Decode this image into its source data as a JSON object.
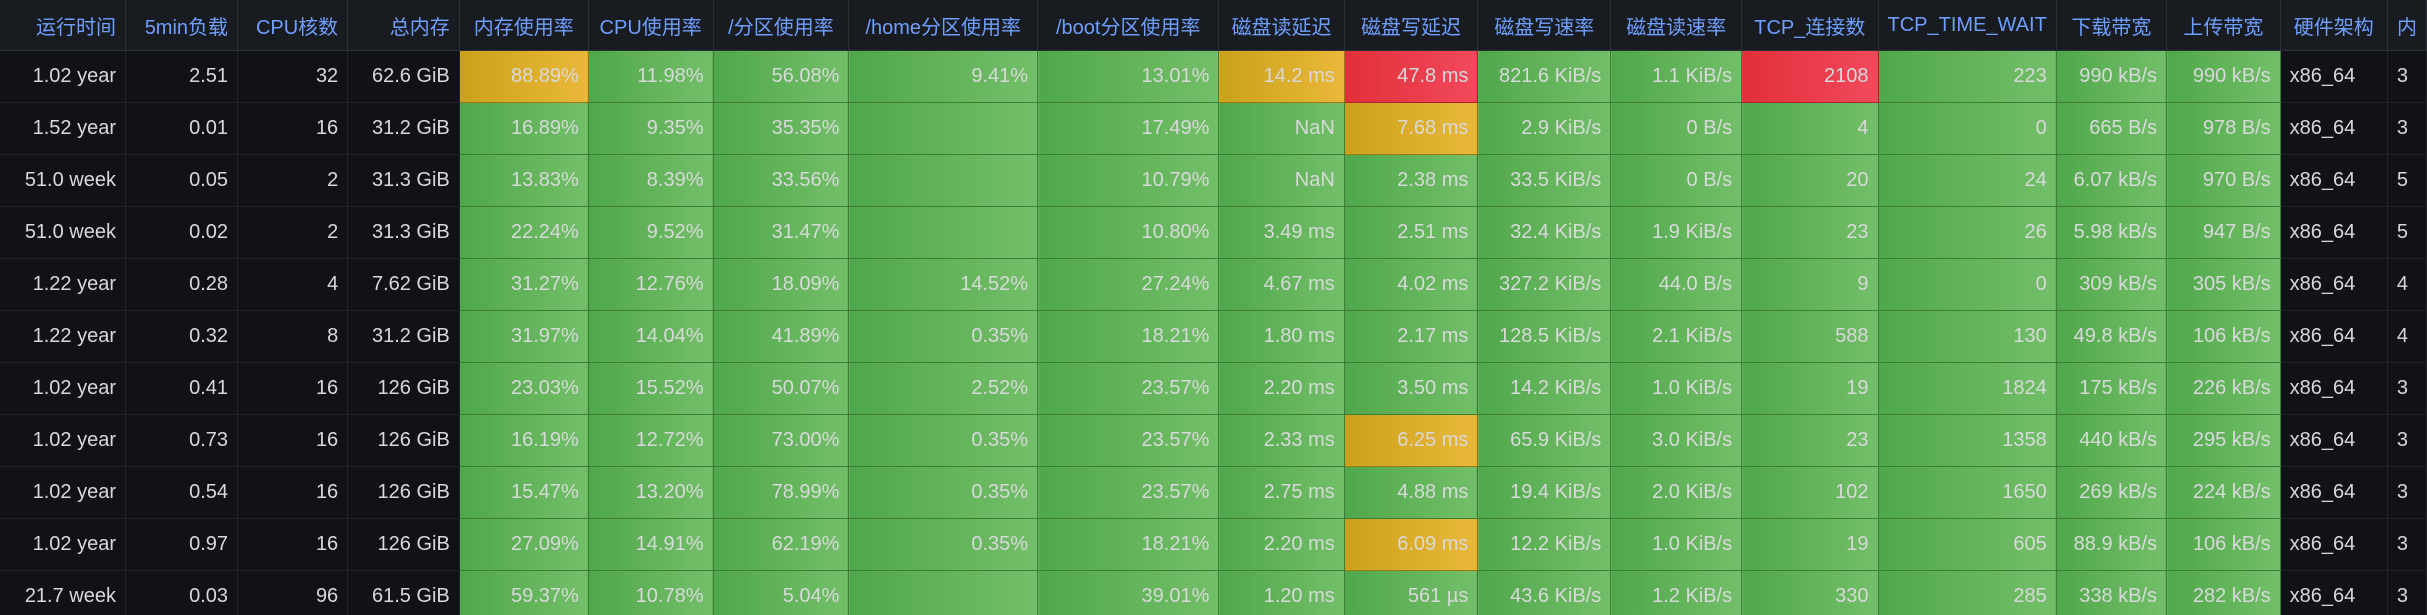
{
  "colors": {
    "ok": "#73bf69",
    "warn": "#eab839",
    "crit": "#f2495c",
    "header_text": "#6e9fff",
    "background": "#111217"
  },
  "columns": [
    {
      "key": "uptime",
      "label": "运行时间",
      "align": "right"
    },
    {
      "key": "load5",
      "label": "5min负载",
      "align": "right"
    },
    {
      "key": "cpu_cores",
      "label": "CPU核数",
      "align": "right"
    },
    {
      "key": "mem_total",
      "label": "总内存",
      "align": "right"
    },
    {
      "key": "mem_usage",
      "label": "内存使用率",
      "align": "right"
    },
    {
      "key": "cpu_usage",
      "label": "CPU使用率",
      "align": "right"
    },
    {
      "key": "root_usage",
      "label": "/分区使用率",
      "align": "right"
    },
    {
      "key": "home_usage",
      "label": "/home分区使用率",
      "align": "right"
    },
    {
      "key": "boot_usage",
      "label": "/boot分区使用率",
      "align": "right"
    },
    {
      "key": "disk_read_latency",
      "label": "磁盘读延迟",
      "align": "right"
    },
    {
      "key": "disk_write_latency",
      "label": "磁盘写延迟",
      "align": "right"
    },
    {
      "key": "disk_write_rate",
      "label": "磁盘写速率",
      "align": "right"
    },
    {
      "key": "disk_read_rate",
      "label": "磁盘读速率",
      "align": "right"
    },
    {
      "key": "tcp_conn",
      "label": "TCP_连接数",
      "align": "right"
    },
    {
      "key": "tcp_time_wait",
      "label": "TCP_TIME_WAIT",
      "align": "right"
    },
    {
      "key": "net_down",
      "label": "下载带宽",
      "align": "right"
    },
    {
      "key": "net_up",
      "label": "上传带宽",
      "align": "right"
    },
    {
      "key": "arch",
      "label": "硬件架构",
      "align": "left"
    },
    {
      "key": "extra",
      "label": "内",
      "align": "left"
    }
  ],
  "rows": [
    {
      "cells": [
        "1.02 year",
        "2.51",
        "32",
        "62.6 GiB",
        "88.89%",
        "11.98%",
        "56.08%",
        "9.41%",
        "13.01%",
        "14.2 ms",
        "47.8 ms",
        "821.6 KiB/s",
        "1.1 KiB/s",
        "2108",
        "223",
        "990 kB/s",
        "990 kB/s",
        "x86_64",
        "3"
      ],
      "status": [
        "plain",
        "plain",
        "plain",
        "plain",
        "warn",
        "ok",
        "ok",
        "ok",
        "ok",
        "warn",
        "crit",
        "ok",
        "ok",
        "crit",
        "ok",
        "ok",
        "ok",
        "plain",
        "plain"
      ]
    },
    {
      "cells": [
        "1.52 year",
        "0.01",
        "16",
        "31.2 GiB",
        "16.89%",
        "9.35%",
        "35.35%",
        "",
        "17.49%",
        "NaN",
        "7.68 ms",
        "2.9 KiB/s",
        "0 B/s",
        "4",
        "0",
        "665 B/s",
        "978 B/s",
        "x86_64",
        "3"
      ],
      "status": [
        "plain",
        "plain",
        "plain",
        "plain",
        "ok",
        "ok",
        "ok",
        "ok",
        "ok",
        "ok",
        "warn",
        "ok",
        "ok",
        "ok",
        "ok",
        "ok",
        "ok",
        "plain",
        "plain"
      ]
    },
    {
      "cells": [
        "51.0 week",
        "0.05",
        "2",
        "31.3 GiB",
        "13.83%",
        "8.39%",
        "33.56%",
        "",
        "10.79%",
        "NaN",
        "2.38 ms",
        "33.5 KiB/s",
        "0 B/s",
        "20",
        "24",
        "6.07 kB/s",
        "970 B/s",
        "x86_64",
        "5"
      ],
      "status": [
        "plain",
        "plain",
        "plain",
        "plain",
        "ok",
        "ok",
        "ok",
        "ok",
        "ok",
        "ok",
        "ok",
        "ok",
        "ok",
        "ok",
        "ok",
        "ok",
        "ok",
        "plain",
        "plain"
      ]
    },
    {
      "cells": [
        "51.0 week",
        "0.02",
        "2",
        "31.3 GiB",
        "22.24%",
        "9.52%",
        "31.47%",
        "",
        "10.80%",
        "3.49 ms",
        "2.51 ms",
        "32.4 KiB/s",
        "1.9 KiB/s",
        "23",
        "26",
        "5.98 kB/s",
        "947 B/s",
        "x86_64",
        "5"
      ],
      "status": [
        "plain",
        "plain",
        "plain",
        "plain",
        "ok",
        "ok",
        "ok",
        "ok",
        "ok",
        "ok",
        "ok",
        "ok",
        "ok",
        "ok",
        "ok",
        "ok",
        "ok",
        "plain",
        "plain"
      ]
    },
    {
      "cells": [
        "1.22 year",
        "0.28",
        "4",
        "7.62 GiB",
        "31.27%",
        "12.76%",
        "18.09%",
        "14.52%",
        "27.24%",
        "4.67 ms",
        "4.02 ms",
        "327.2 KiB/s",
        "44.0 B/s",
        "9",
        "0",
        "309 kB/s",
        "305 kB/s",
        "x86_64",
        "4"
      ],
      "status": [
        "plain",
        "plain",
        "plain",
        "plain",
        "ok",
        "ok",
        "ok",
        "ok",
        "ok",
        "ok",
        "ok",
        "ok",
        "ok",
        "ok",
        "ok",
        "ok",
        "ok",
        "plain",
        "plain"
      ]
    },
    {
      "cells": [
        "1.22 year",
        "0.32",
        "8",
        "31.2 GiB",
        "31.97%",
        "14.04%",
        "41.89%",
        "0.35%",
        "18.21%",
        "1.80 ms",
        "2.17 ms",
        "128.5 KiB/s",
        "2.1 KiB/s",
        "588",
        "130",
        "49.8 kB/s",
        "106 kB/s",
        "x86_64",
        "4"
      ],
      "status": [
        "plain",
        "plain",
        "plain",
        "plain",
        "ok",
        "ok",
        "ok",
        "ok",
        "ok",
        "ok",
        "ok",
        "ok",
        "ok",
        "ok",
        "ok",
        "ok",
        "ok",
        "plain",
        "plain"
      ]
    },
    {
      "cells": [
        "1.02 year",
        "0.41",
        "16",
        "126 GiB",
        "23.03%",
        "15.52%",
        "50.07%",
        "2.52%",
        "23.57%",
        "2.20 ms",
        "3.50 ms",
        "14.2 KiB/s",
        "1.0 KiB/s",
        "19",
        "1824",
        "175 kB/s",
        "226 kB/s",
        "x86_64",
        "3"
      ],
      "status": [
        "plain",
        "plain",
        "plain",
        "plain",
        "ok",
        "ok",
        "ok",
        "ok",
        "ok",
        "ok",
        "ok",
        "ok",
        "ok",
        "ok",
        "ok",
        "ok",
        "ok",
        "plain",
        "plain"
      ]
    },
    {
      "cells": [
        "1.02 year",
        "0.73",
        "16",
        "126 GiB",
        "16.19%",
        "12.72%",
        "73.00%",
        "0.35%",
        "23.57%",
        "2.33 ms",
        "6.25 ms",
        "65.9 KiB/s",
        "3.0 KiB/s",
        "23",
        "1358",
        "440 kB/s",
        "295 kB/s",
        "x86_64",
        "3"
      ],
      "status": [
        "plain",
        "plain",
        "plain",
        "plain",
        "ok",
        "ok",
        "ok",
        "ok",
        "ok",
        "ok",
        "warn",
        "ok",
        "ok",
        "ok",
        "ok",
        "ok",
        "ok",
        "plain",
        "plain"
      ]
    },
    {
      "cells": [
        "1.02 year",
        "0.54",
        "16",
        "126 GiB",
        "15.47%",
        "13.20%",
        "78.99%",
        "0.35%",
        "23.57%",
        "2.75 ms",
        "4.88 ms",
        "19.4 KiB/s",
        "2.0 KiB/s",
        "102",
        "1650",
        "269 kB/s",
        "224 kB/s",
        "x86_64",
        "3"
      ],
      "status": [
        "plain",
        "plain",
        "plain",
        "plain",
        "ok",
        "ok",
        "ok",
        "ok",
        "ok",
        "ok",
        "ok",
        "ok",
        "ok",
        "ok",
        "ok",
        "ok",
        "ok",
        "plain",
        "plain"
      ]
    },
    {
      "cells": [
        "1.02 year",
        "0.97",
        "16",
        "126 GiB",
        "27.09%",
        "14.91%",
        "62.19%",
        "0.35%",
        "18.21%",
        "2.20 ms",
        "6.09 ms",
        "12.2 KiB/s",
        "1.0 KiB/s",
        "19",
        "605",
        "88.9 kB/s",
        "106 kB/s",
        "x86_64",
        "3"
      ],
      "status": [
        "plain",
        "plain",
        "plain",
        "plain",
        "ok",
        "ok",
        "ok",
        "ok",
        "ok",
        "ok",
        "warn",
        "ok",
        "ok",
        "ok",
        "ok",
        "ok",
        "ok",
        "plain",
        "plain"
      ]
    },
    {
      "cells": [
        "21.7 week",
        "0.03",
        "96",
        "61.5 GiB",
        "59.37%",
        "10.78%",
        "5.04%",
        "",
        "39.01%",
        "1.20 ms",
        "561 µs",
        "43.6 KiB/s",
        "1.2 KiB/s",
        "330",
        "285",
        "338 kB/s",
        "282 kB/s",
        "x86_64",
        "3"
      ],
      "status": [
        "plain",
        "plain",
        "plain",
        "plain",
        "ok",
        "ok",
        "ok",
        "ok",
        "ok",
        "ok",
        "ok",
        "ok",
        "ok",
        "ok",
        "ok",
        "ok",
        "ok",
        "plain",
        "plain"
      ]
    }
  ]
}
